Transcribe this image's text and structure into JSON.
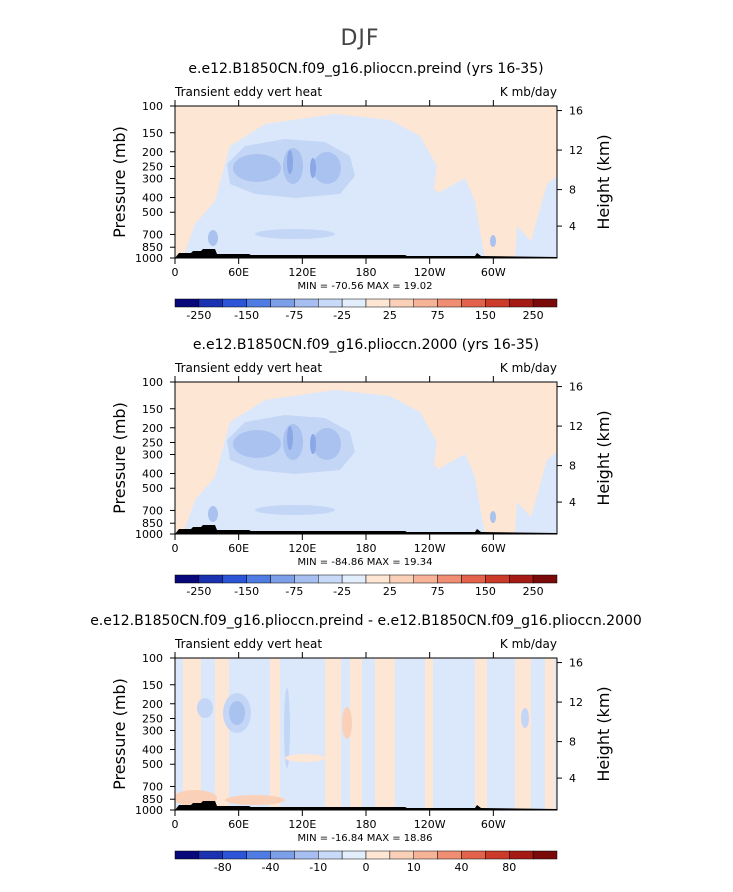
{
  "page": {
    "title": "DJF"
  },
  "colors": {
    "land": "#000000",
    "frame": "#000000",
    "neg_1": "#dbe8fb",
    "neg_2": "#c4d6f6",
    "neg_3": "#a9c2ef",
    "neg_4": "#8ba8e6",
    "pos_1": "#fde6d4",
    "pos_2": "#fbd0b8",
    "pos_3": "#f6a98f"
  },
  "chart_data": [
    {
      "type": "heatmap",
      "title": "e.e12.B1850CN.f09_g16.plioccn.preind (yrs 16-35)",
      "left_label": "Transient eddy vert heat",
      "right_label": "K mb/day",
      "ylabel": "Pressure (mb)",
      "ylabel_right": "Height (km)",
      "x_ticks": [
        "0",
        "60E",
        "120E",
        "180",
        "120W",
        "60W"
      ],
      "y_ticks": [
        "100",
        "150",
        "200",
        "250",
        "300",
        "400",
        "500",
        "700",
        "850",
        "1000"
      ],
      "y_ticks_right": [
        "16",
        "12",
        "8",
        "4"
      ],
      "stats": "MIN = -70.56   MAX =  19.02",
      "colorbar_labels": [
        "-250",
        "-150",
        "-75",
        "-25",
        "25",
        "75",
        "150",
        "250"
      ]
    },
    {
      "type": "heatmap",
      "title": "e.e12.B1850CN.f09_g16.plioccn.2000 (yrs 16-35)",
      "left_label": "Transient eddy vert heat",
      "right_label": "K mb/day",
      "ylabel": "Pressure (mb)",
      "ylabel_right": "Height (km)",
      "x_ticks": [
        "0",
        "60E",
        "120E",
        "180",
        "120W",
        "60W"
      ],
      "y_ticks": [
        "100",
        "150",
        "200",
        "250",
        "300",
        "400",
        "500",
        "700",
        "850",
        "1000"
      ],
      "y_ticks_right": [
        "16",
        "12",
        "8",
        "4"
      ],
      "stats": "MIN = -84.86   MAX =  19.34",
      "colorbar_labels": [
        "-250",
        "-150",
        "-75",
        "-25",
        "25",
        "75",
        "150",
        "250"
      ]
    },
    {
      "type": "heatmap",
      "title": "e.e12.B1850CN.f09_g16.plioccn.preind - e.e12.B1850CN.f09_g16.plioccn.2000",
      "left_label": "Transient eddy vert heat",
      "right_label": "K mb/day",
      "ylabel": "Pressure (mb)",
      "ylabel_right": "Height (km)",
      "x_ticks": [
        "0",
        "60E",
        "120E",
        "180",
        "120W",
        "60W"
      ],
      "y_ticks": [
        "100",
        "150",
        "200",
        "250",
        "300",
        "400",
        "500",
        "700",
        "850",
        "1000"
      ],
      "y_ticks_right": [
        "16",
        "12",
        "8",
        "4"
      ],
      "stats": "MIN = -16.84   MAX =  18.86",
      "colorbar_labels": [
        "-80",
        "-40",
        "-10",
        "0",
        "10",
        "40",
        "80"
      ]
    }
  ],
  "colorbar_colors": [
    "#08087a",
    "#1a32b0",
    "#2b55d6",
    "#4f7ce2",
    "#7c9fe8",
    "#a6bff0",
    "#c9daf8",
    "#e3eefc",
    "#fde6d4",
    "#fbd0b8",
    "#f6b398",
    "#f08e73",
    "#e3624b",
    "#cc3a2a",
    "#a61a15",
    "#7a0a0a"
  ]
}
